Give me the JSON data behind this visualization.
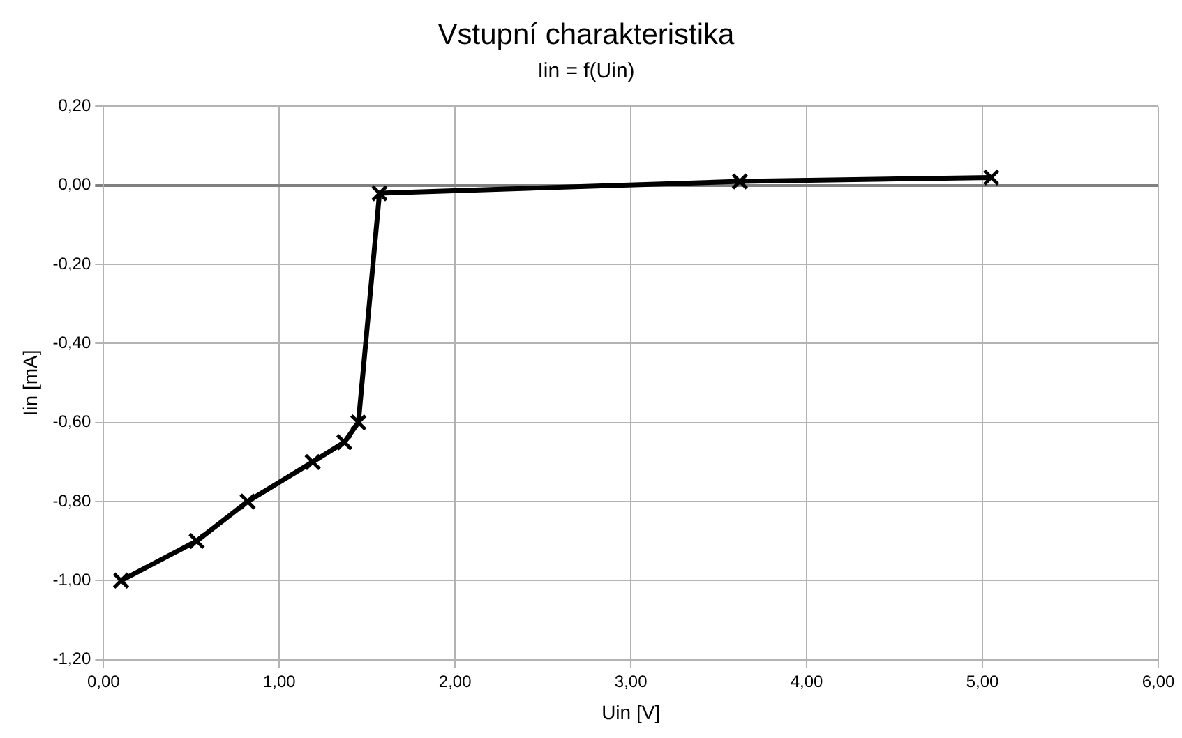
{
  "chart_data": {
    "type": "line",
    "title": "Vstupní charakteristika",
    "subtitle": "Iin = f(Uin)",
    "xlabel": "Uin [V]",
    "ylabel": "Iin [mA]",
    "x": [
      0.1,
      0.53,
      0.82,
      1.19,
      1.37,
      1.45,
      1.57,
      3.62,
      5.05
    ],
    "series": [
      {
        "color": "#000000",
        "values": [
          -1.0,
          -0.9,
          -0.8,
          -0.7,
          -0.65,
          -0.6,
          -0.02,
          0.01,
          0.02
        ]
      }
    ],
    "xlim": [
      0,
      6
    ],
    "xticks": [
      {
        "value": 0,
        "label": "0,00"
      },
      {
        "value": 1,
        "label": "1,00"
      },
      {
        "value": 2,
        "label": "2,00"
      },
      {
        "value": 3,
        "label": "3,00"
      },
      {
        "value": 4,
        "label": "4,00"
      },
      {
        "value": 5,
        "label": "5,00"
      },
      {
        "value": 6,
        "label": "6,00"
      }
    ],
    "ylim": [
      -1.2,
      0.2
    ],
    "yticks": [
      {
        "value": -1.2,
        "label": "-1,20"
      },
      {
        "value": -1,
        "label": "-1,00"
      },
      {
        "value": -0.8,
        "label": "-0,80"
      },
      {
        "value": -0.6,
        "label": "-0,60"
      },
      {
        "value": -0.4,
        "label": "-0,40"
      },
      {
        "value": -0.2,
        "label": "-0,20"
      },
      {
        "value": 0,
        "label": "0,00"
      },
      {
        "value": 0.2,
        "label": "0,20"
      }
    ],
    "grid": true,
    "legend": false,
    "marker": "cross",
    "line_style": "solid"
  }
}
